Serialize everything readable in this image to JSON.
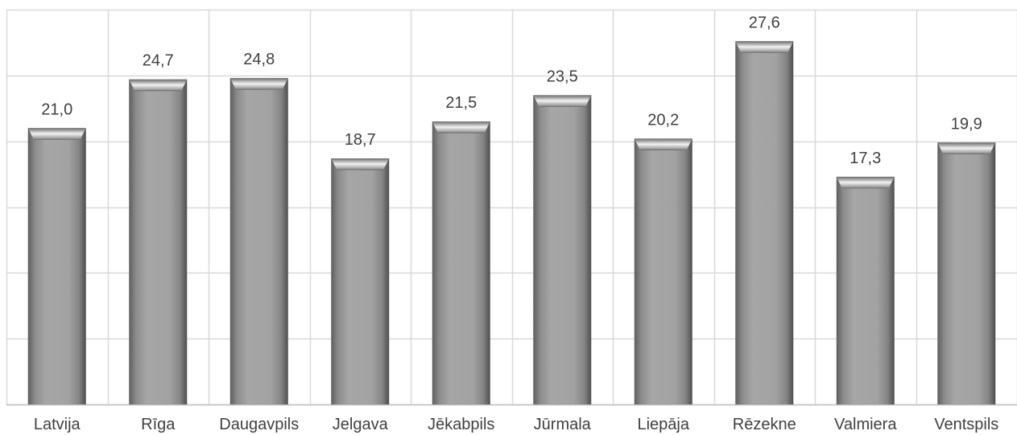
{
  "chart_data": {
    "type": "bar",
    "categories": [
      "Latvija",
      "Rīga",
      "Daugavpils",
      "Jelgava",
      "Jēkabpils",
      "Jūrmala",
      "Liepāja",
      "Rēzekne",
      "Valmiera",
      "Ventspils"
    ],
    "values": [
      21.0,
      24.7,
      24.8,
      18.7,
      21.5,
      23.5,
      20.2,
      27.6,
      17.3,
      19.9
    ],
    "value_labels": [
      "21,0",
      "24,7",
      "24,8",
      "18,7",
      "21,5",
      "23,5",
      "20,2",
      "27,6",
      "17,3",
      "19,9"
    ],
    "ylim": [
      0,
      30
    ],
    "y_grid_step": 5,
    "grid": true,
    "title": "",
    "xlabel": "",
    "ylabel": "",
    "bar_color": "#9c9c9c",
    "grid_color": "#d9d9d9"
  }
}
